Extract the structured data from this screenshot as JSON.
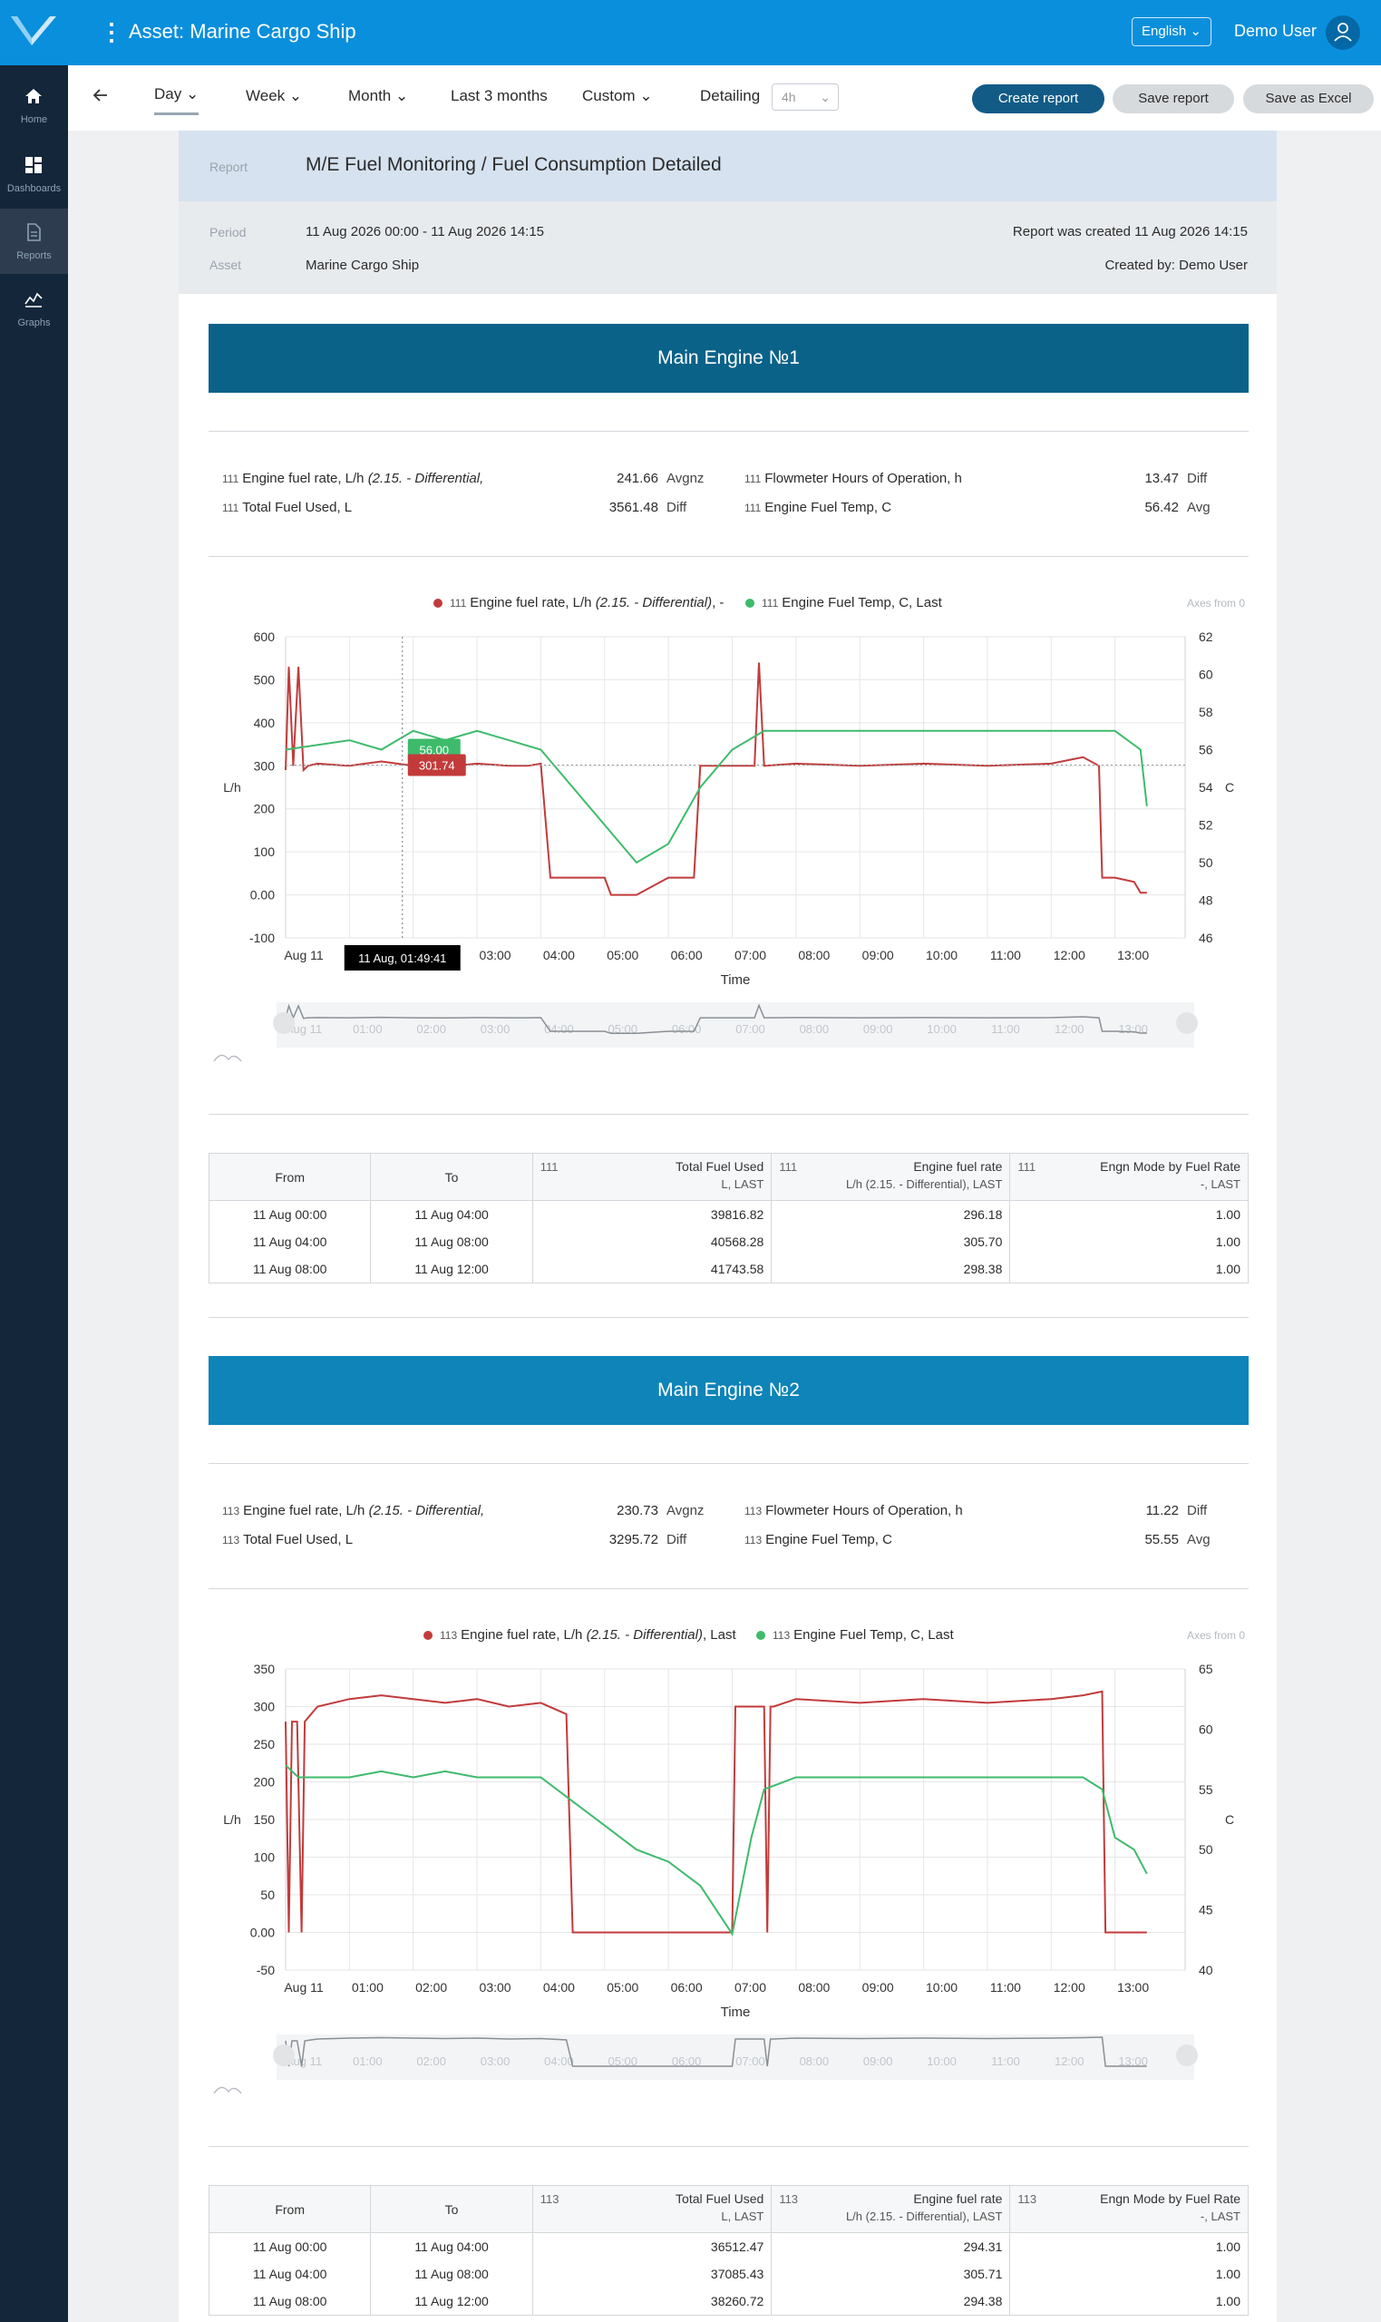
{
  "app": {
    "title": "Asset: Marine Cargo Ship",
    "language": "English",
    "user": "Demo User"
  },
  "sidenav": [
    {
      "label": "Home",
      "icon": "home-icon"
    },
    {
      "label": "Dashboards",
      "icon": "dashboards-icon"
    },
    {
      "label": "Reports",
      "icon": "reports-icon",
      "active": true
    },
    {
      "label": "Graphs",
      "icon": "graphs-icon"
    }
  ],
  "toolbar": {
    "periods": [
      "Day",
      "Week",
      "Month",
      "Last 3 months",
      "Custom"
    ],
    "active_period": "Day",
    "detailing_label": "Detailing",
    "detailing_value": "4h",
    "create_report": "Create report",
    "save_report": "Save report",
    "save_excel": "Save as Excel"
  },
  "report": {
    "report_label": "Report",
    "title": "M/E Fuel Monitoring / Fuel Consumption Detailed",
    "period_label": "Period",
    "period_value": "11 Aug 2026 00:00 - 11 Aug 2026 14:15",
    "asset_label": "Asset",
    "asset_value": "Marine Cargo Ship",
    "created_at": "Report was created 11 Aug 2026 14:15",
    "created_by": "Created by: Demo User"
  },
  "engines": [
    {
      "title": "Main Engine №1",
      "banner_color": "#0b6289",
      "prefix": "111",
      "metrics": [
        {
          "name": "Engine fuel rate, L/h",
          "qualifier": "(2.15. - Differential,",
          "value": "241.66",
          "unit": "Avgnz"
        },
        {
          "name": "Total Fuel Used, L",
          "qualifier": "",
          "value": "3561.48",
          "unit": "Diff"
        },
        {
          "name": "Flowmeter Hours of Operation, h",
          "qualifier": "",
          "value": "13.47",
          "unit": "Diff"
        },
        {
          "name": "Engine Fuel Temp, C",
          "qualifier": "",
          "value": "56.42",
          "unit": "Avg"
        }
      ],
      "legend": [
        {
          "name": "Engine fuel rate, L/h",
          "qualifier": "(2.15. - Differential)",
          "suffix": ", -",
          "color": "#c23b3b"
        },
        {
          "name": "Engine Fuel Temp, C, Last",
          "qualifier": "",
          "suffix": "",
          "color": "#3dbb6b"
        }
      ],
      "axes_note": "Axes from 0",
      "chart_data": {
        "type": "line",
        "x_unit": "hours since 11 Aug 00:00",
        "xlabel": "Time",
        "ylabel_left": "L/h",
        "ylabel_right": "C",
        "y_left_range": [
          -100,
          600
        ],
        "y_left_ticks": [
          "-100",
          "0.00",
          "100",
          "200",
          "300",
          "400",
          "500",
          "600"
        ],
        "y_right_range": [
          46,
          62
        ],
        "y_right_ticks": [
          "46",
          "48",
          "50",
          "52",
          "54",
          "56",
          "58",
          "60",
          "62"
        ],
        "x_ticks": [
          "Aug 11",
          "01:00",
          "02:00",
          "03:00",
          "04:00",
          "05:00",
          "06:00",
          "07:00",
          "08:00",
          "09:00",
          "10:00",
          "11:00",
          "12:00",
          "13:00"
        ],
        "series": [
          {
            "name": "Engine fuel rate, L/h (2.15. - Differential), -",
            "axis": "left",
            "color": "#c23b3b",
            "x": [
              0,
              0.05,
              0.12,
              0.2,
              0.28,
              0.35,
              0.5,
              1,
              1.5,
              2,
              2.5,
              3,
              3.5,
              3.8,
              4.0,
              4.15,
              4.5,
              5,
              5.1,
              5.5,
              6,
              6.4,
              6.5,
              7,
              7.35,
              7.42,
              7.5,
              8,
              9,
              10,
              11,
              12,
              12.5,
              12.75,
              12.8,
              13.0,
              13.3,
              13.4,
              13.5
            ],
            "y": [
              290,
              530,
              300,
              530,
              290,
              300,
              305,
              300,
              310,
              300,
              298,
              305,
              300,
              300,
              305,
              40,
              40,
              40,
              0,
              0,
              40,
              40,
              300,
              300,
              300,
              540,
              300,
              305,
              300,
              305,
              300,
              305,
              320,
              300,
              40,
              40,
              30,
              5,
              5
            ]
          },
          {
            "name": "Engine Fuel Temp, C, Last",
            "axis": "right",
            "color": "#3dbb6b",
            "x": [
              0,
              1,
              1.5,
              2,
              2.5,
              3,
              3.5,
              4,
              4.5,
              5,
              5.5,
              6,
              6.5,
              7,
              7.5,
              8,
              9,
              10,
              11,
              12,
              12.5,
              13,
              13.4,
              13.5
            ],
            "y": [
              56,
              56.5,
              56,
              57,
              56.5,
              57,
              56.5,
              56,
              54,
              52,
              50,
              51,
              54,
              56,
              57,
              57,
              57,
              57,
              57,
              57,
              57,
              57,
              56,
              53
            ]
          }
        ],
        "tooltip": {
          "time": "11 Aug, 01:49:41",
          "values": [
            "56.00",
            "301.74"
          ],
          "x": 1.83
        }
      },
      "table": {
        "headers": {
          "from": "From",
          "to": "To",
          "cols": [
            {
              "prefix": "111",
              "name": "Total Fuel Used",
              "sub": "L, LAST"
            },
            {
              "prefix": "111",
              "name": "Engine fuel rate",
              "sub": "L/h (2.15. - Differential), LAST"
            },
            {
              "prefix": "111",
              "name": "Engn Mode by Fuel Rate",
              "sub": "-, LAST"
            }
          ]
        },
        "rows": [
          [
            "11 Aug 00:00",
            "11 Aug 04:00",
            "39816.82",
            "296.18",
            "1.00"
          ],
          [
            "11 Aug 04:00",
            "11 Aug 08:00",
            "40568.28",
            "305.70",
            "1.00"
          ],
          [
            "11 Aug 08:00",
            "11 Aug 12:00",
            "41743.58",
            "298.38",
            "1.00"
          ]
        ]
      }
    },
    {
      "title": "Main Engine №2",
      "banner_color": "#0e84b8",
      "prefix": "113",
      "metrics": [
        {
          "name": "Engine fuel rate, L/h",
          "qualifier": "(2.15. - Differential,",
          "value": "230.73",
          "unit": "Avgnz"
        },
        {
          "name": "Total Fuel Used, L",
          "qualifier": "",
          "value": "3295.72",
          "unit": "Diff"
        },
        {
          "name": "Flowmeter Hours of Operation, h",
          "qualifier": "",
          "value": "11.22",
          "unit": "Diff"
        },
        {
          "name": "Engine Fuel Temp, C",
          "qualifier": "",
          "value": "55.55",
          "unit": "Avg"
        }
      ],
      "legend": [
        {
          "name": "Engine fuel rate, L/h",
          "qualifier": "(2.15. - Differential)",
          "suffix": ", Last",
          "color": "#c23b3b"
        },
        {
          "name": "Engine Fuel Temp, C, Last",
          "qualifier": "",
          "suffix": "",
          "color": "#3dbb6b"
        }
      ],
      "axes_note": "Axes from 0",
      "chart_data": {
        "type": "line",
        "x_unit": "hours since 11 Aug 00:00",
        "xlabel": "Time",
        "ylabel_left": "L/h",
        "ylabel_right": "C",
        "y_left_range": [
          -50,
          350
        ],
        "y_left_ticks": [
          "-50",
          "0.00",
          "50",
          "100",
          "150",
          "200",
          "250",
          "300",
          "350"
        ],
        "y_right_range": [
          40,
          65
        ],
        "y_right_ticks": [
          "40",
          "45",
          "50",
          "55",
          "60",
          "65"
        ],
        "x_ticks": [
          "Aug 11",
          "01:00",
          "02:00",
          "03:00",
          "04:00",
          "05:00",
          "06:00",
          "07:00",
          "08:00",
          "09:00",
          "10:00",
          "11:00",
          "12:00",
          "13:00"
        ],
        "series": [
          {
            "name": "Engine fuel rate, L/h (2.15. - Differential), Last",
            "axis": "left",
            "color": "#c23b3b",
            "x": [
              0,
              0.05,
              0.1,
              0.18,
              0.25,
              0.3,
              0.4,
              0.5,
              1,
              1.5,
              2,
              2.5,
              3,
              3.5,
              4,
              4.4,
              4.5,
              5,
              6,
              7,
              7.05,
              7.5,
              7.55,
              7.6,
              7.65,
              8,
              9,
              10,
              11,
              12,
              12.5,
              12.8,
              12.85,
              13,
              13.5
            ],
            "y": [
              280,
              0,
              280,
              280,
              0,
              280,
              290,
              300,
              310,
              315,
              310,
              305,
              310,
              300,
              305,
              290,
              0,
              0,
              0,
              0,
              300,
              300,
              0,
              300,
              300,
              310,
              305,
              310,
              305,
              310,
              315,
              320,
              0,
              0,
              0
            ]
          },
          {
            "name": "Engine Fuel Temp, C, Last",
            "axis": "right",
            "color": "#3dbb6b",
            "x": [
              0,
              0.2,
              1,
              1.5,
              2,
              2.5,
              3,
              3.5,
              4,
              4.5,
              5,
              5.5,
              6,
              6.5,
              7,
              7.3,
              7.5,
              8,
              9,
              10,
              11,
              12,
              12.5,
              12.8,
              13,
              13.3,
              13.5
            ],
            "y": [
              57,
              56,
              56,
              56.5,
              56,
              56.5,
              56,
              56,
              56,
              54,
              52,
              50,
              49,
              47,
              43,
              51,
              55,
              56,
              56,
              56,
              56,
              56,
              56,
              55,
              51,
              50,
              48
            ]
          }
        ]
      },
      "table": {
        "headers": {
          "from": "From",
          "to": "To",
          "cols": [
            {
              "prefix": "113",
              "name": "Total Fuel Used",
              "sub": "L, LAST"
            },
            {
              "prefix": "113",
              "name": "Engine fuel rate",
              "sub": "L/h (2.15. - Differential), LAST"
            },
            {
              "prefix": "113",
              "name": "Engn Mode by Fuel Rate",
              "sub": "-, LAST"
            }
          ]
        },
        "rows": [
          [
            "11 Aug 00:00",
            "11 Aug 04:00",
            "36512.47",
            "294.31",
            "1.00"
          ],
          [
            "11 Aug 04:00",
            "11 Aug 08:00",
            "37085.43",
            "305.71",
            "1.00"
          ],
          [
            "11 Aug 08:00",
            "11 Aug 12:00",
            "38260.72",
            "294.38",
            "1.00"
          ]
        ]
      }
    }
  ]
}
